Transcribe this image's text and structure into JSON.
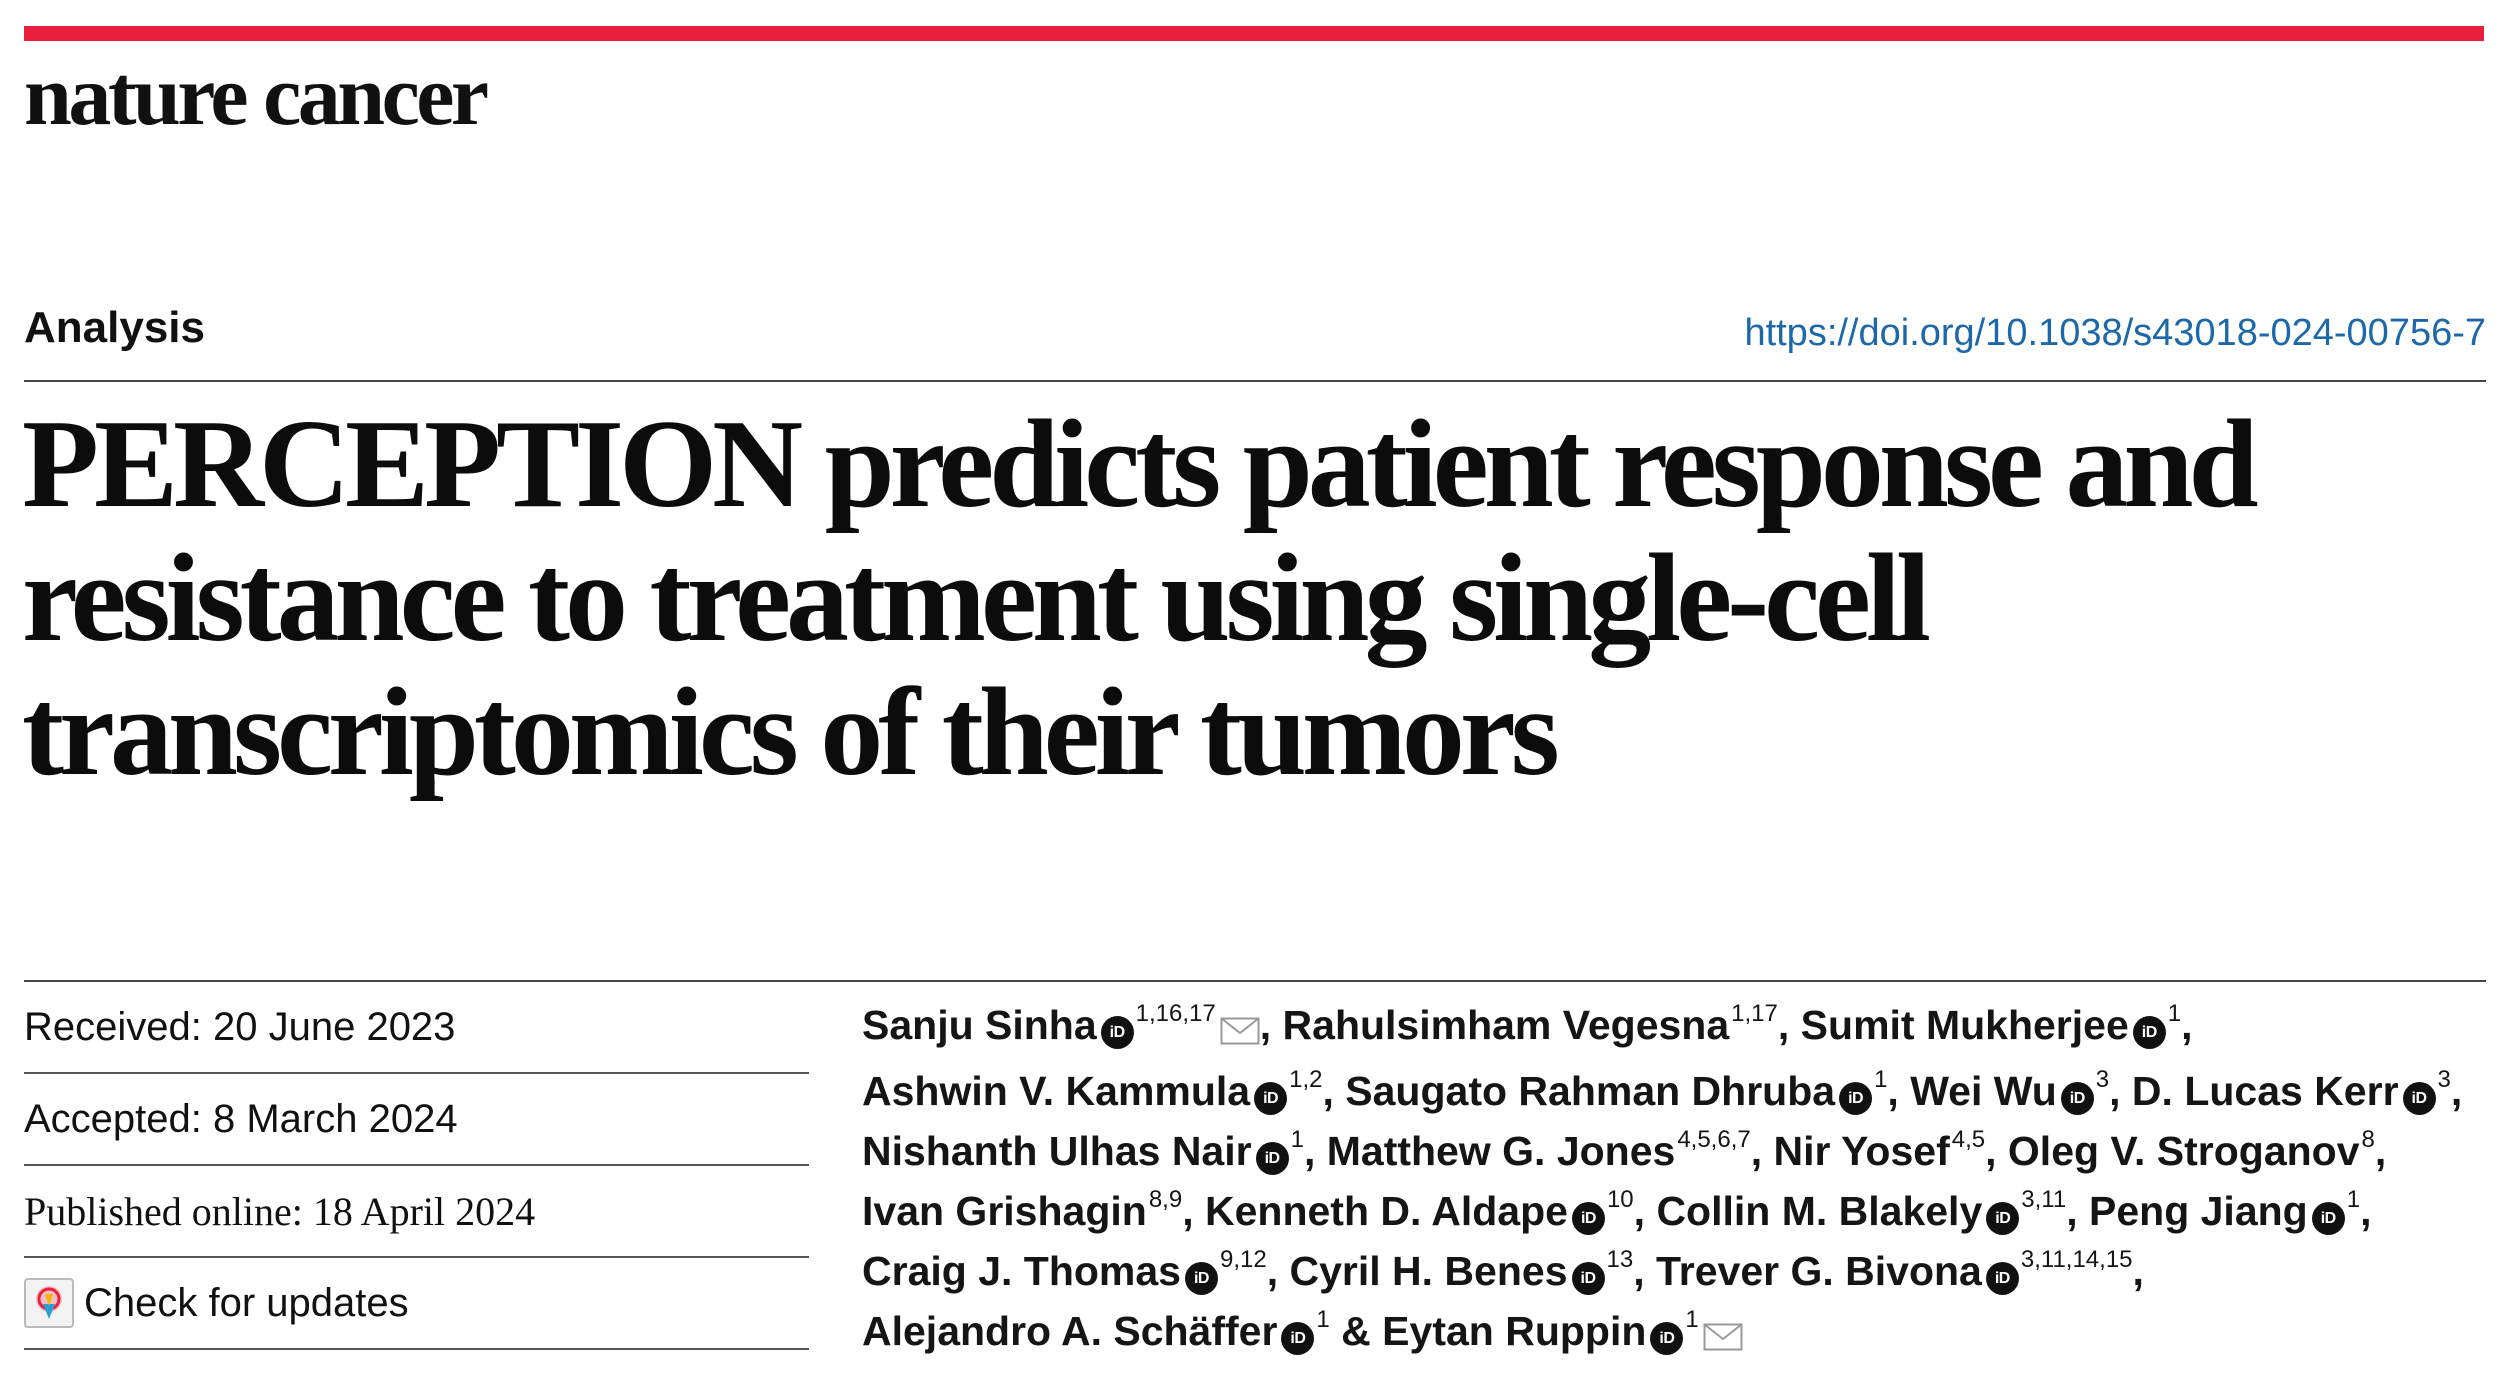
{
  "journal": "nature cancer",
  "article_type": "Analysis",
  "doi": "https://doi.org/10.1038/s43018-024-00756-7",
  "title": "PERCEPTION predicts patient response and resistance to treatment using single-cell transcriptomics of their tumors",
  "dates": {
    "received": "Received: 20 June 2023",
    "accepted": "Accepted: 8 March 2024",
    "published": "Published online: 18 April 2024",
    "check_updates": "Check for updates"
  },
  "orcid_label": "iD",
  "colors": {
    "brand_bar": "#e8203d",
    "doi_link": "#1d68a8",
    "text": "#111111"
  },
  "authors": [
    {
      "name": "Sanju Sinha",
      "orcid": true,
      "aff": "1,16,17",
      "mail": true,
      "sep": ", "
    },
    {
      "name": "Rahulsimham Vegesna",
      "orcid": false,
      "aff": "1,17",
      "mail": false,
      "sep": ", "
    },
    {
      "name": "Sumit Mukherjee",
      "orcid": true,
      "aff": "1",
      "mail": false,
      "sep": ", "
    },
    {
      "name": "Ashwin V. Kammula",
      "orcid": true,
      "aff": "1,2",
      "mail": false,
      "sep": ", "
    },
    {
      "name": "Saugato Rahman Dhruba",
      "orcid": true,
      "aff": "1",
      "mail": false,
      "sep": ", "
    },
    {
      "name": "Wei Wu",
      "orcid": true,
      "aff": "3",
      "mail": false,
      "sep": ", "
    },
    {
      "name": "D. Lucas Kerr",
      "orcid": true,
      "aff": "3",
      "mail": false,
      "sep": ", "
    },
    {
      "name": "Nishanth Ulhas Nair",
      "orcid": true,
      "aff": "1",
      "mail": false,
      "sep": ", "
    },
    {
      "name": "Matthew G. Jones",
      "orcid": false,
      "aff": "4,5,6,7",
      "mail": false,
      "sep": ", "
    },
    {
      "name": "Nir Yosef",
      "orcid": false,
      "aff": "4,5",
      "mail": false,
      "sep": ", "
    },
    {
      "name": "Oleg V. Stroganov",
      "orcid": false,
      "aff": "8",
      "mail": false,
      "sep": ", "
    },
    {
      "name": "Ivan Grishagin",
      "orcid": false,
      "aff": "8,9",
      "mail": false,
      "sep": ", "
    },
    {
      "name": "Kenneth D. Aldape",
      "orcid": true,
      "aff": "10",
      "mail": false,
      "sep": ", "
    },
    {
      "name": "Collin M. Blakely",
      "orcid": true,
      "aff": "3,11",
      "mail": false,
      "sep": ", "
    },
    {
      "name": "Peng Jiang",
      "orcid": true,
      "aff": "1",
      "mail": false,
      "sep": ", "
    },
    {
      "name": "Craig J. Thomas",
      "orcid": true,
      "aff": "9,12",
      "mail": false,
      "sep": ", "
    },
    {
      "name": "Cyril H. Benes",
      "orcid": true,
      "aff": "13",
      "mail": false,
      "sep": ", "
    },
    {
      "name": "Trever G. Bivona",
      "orcid": true,
      "aff": "3,11,14,15",
      "mail": false,
      "sep": ", "
    },
    {
      "name": "Alejandro A. Schäffer",
      "orcid": true,
      "aff": "1",
      "mail": false,
      "sep": " & "
    },
    {
      "name": "Eytan Ruppin",
      "orcid": true,
      "aff": "1",
      "mail": true,
      "sep": ""
    }
  ]
}
